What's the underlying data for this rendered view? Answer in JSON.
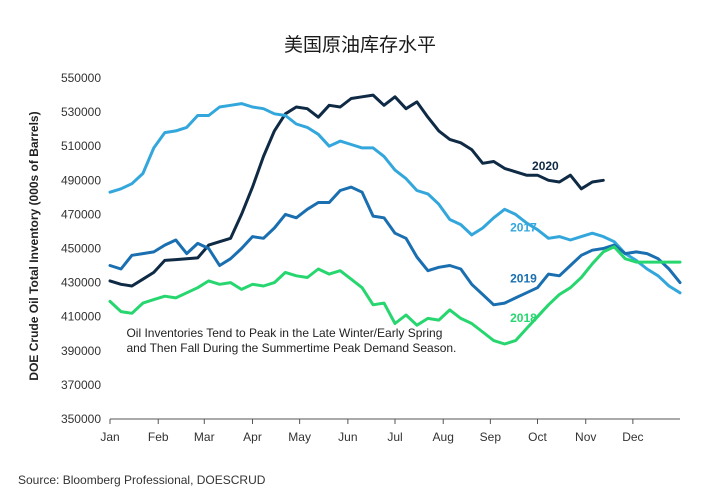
{
  "chart_data": {
    "type": "line",
    "title": "美国原油库存水平",
    "ylabel": "DOE Crude Oil Total Inventory (000s of Barrels)",
    "xlabel": "",
    "ylim": [
      350000,
      550000
    ],
    "yticks": [
      350000,
      370000,
      390000,
      410000,
      430000,
      450000,
      470000,
      490000,
      510000,
      530000,
      550000
    ],
    "ytick_labels": [
      "350000",
      "370000",
      "390000",
      "410000",
      "430000",
      "450000",
      "470000",
      "490000",
      "510000",
      "530000",
      "550000"
    ],
    "x_unit": "week of year",
    "xlim": [
      1,
      53
    ],
    "xticks": [
      1,
      5.4,
      9.6,
      14,
      18.3,
      22.7,
      27,
      31.4,
      35.7,
      40,
      44.4,
      48.7
    ],
    "xtick_labels": [
      "Jan",
      "Feb",
      "Mar",
      "Apr",
      "May",
      "Jun",
      "Jul",
      "Aug",
      "Sep",
      "Oct",
      "Nov",
      "Dec"
    ],
    "grid": false,
    "legend": "inline labels",
    "annotation": [
      "Oil Inventories Tend to Peak in the Late Winter/Early Spring",
      "and Then Fall During the Summertime Peak Demand Season."
    ],
    "source": "Source: Bloomberg Professional, DOESCRUD",
    "series": [
      {
        "name": "2020",
        "color": "#0f2a45",
        "x": [
          1,
          2,
          3,
          4,
          5,
          6,
          7,
          8,
          9,
          10,
          11,
          12,
          13,
          14,
          15,
          16,
          17,
          18,
          19,
          20,
          21,
          22,
          23,
          24,
          25,
          26,
          27,
          28,
          29,
          30,
          31,
          32,
          33,
          34,
          35,
          36,
          37,
          38,
          39,
          40,
          41,
          42,
          43,
          44,
          45,
          46
        ],
        "values": [
          431000,
          429000,
          428000,
          432000,
          436000,
          443000,
          443500,
          444000,
          444500,
          452000,
          454000,
          456000,
          470000,
          486000,
          504000,
          519000,
          529000,
          533000,
          532000,
          527000,
          534000,
          533000,
          538000,
          539000,
          540000,
          534000,
          539000,
          532000,
          536000,
          527000,
          519000,
          514000,
          512000,
          508000,
          500000,
          501000,
          497000,
          495000,
          493000,
          493000,
          490000,
          489000,
          493000,
          485000,
          489000,
          490000
        ]
      },
      {
        "name": "2017",
        "color": "#33a7dc",
        "x": [
          1,
          2,
          3,
          4,
          5,
          6,
          7,
          8,
          9,
          10,
          11,
          12,
          13,
          14,
          15,
          16,
          17,
          18,
          19,
          20,
          21,
          22,
          23,
          24,
          25,
          26,
          27,
          28,
          29,
          30,
          31,
          32,
          33,
          34,
          35,
          36,
          37,
          38,
          39,
          40,
          41,
          42,
          43,
          44,
          45,
          46,
          47,
          48,
          49,
          50,
          51,
          52,
          53
        ],
        "values": [
          483000,
          485000,
          488000,
          494000,
          509000,
          518000,
          519000,
          521000,
          528000,
          528000,
          533000,
          534000,
          535000,
          533000,
          532000,
          529000,
          528000,
          523000,
          521000,
          517000,
          510000,
          513000,
          511000,
          509000,
          509000,
          504000,
          496000,
          491000,
          484000,
          482000,
          476000,
          467000,
          464000,
          458000,
          462000,
          468000,
          473000,
          470000,
          465000,
          461000,
          456000,
          457000,
          455000,
          457000,
          459000,
          457000,
          454000,
          447000,
          443000,
          438000,
          434000,
          428000,
          424000
        ]
      },
      {
        "name": "2019",
        "color": "#1a6fb0",
        "x": [
          1,
          2,
          3,
          4,
          5,
          6,
          7,
          8,
          9,
          10,
          11,
          12,
          13,
          14,
          15,
          16,
          17,
          18,
          19,
          20,
          21,
          22,
          23,
          24,
          25,
          26,
          27,
          28,
          29,
          30,
          31,
          32,
          33,
          34,
          35,
          36,
          37,
          38,
          39,
          40,
          41,
          42,
          43,
          44,
          45,
          46,
          47,
          48,
          49,
          50,
          51,
          52,
          53
        ],
        "values": [
          440000,
          438000,
          446000,
          447000,
          448000,
          452000,
          455000,
          447000,
          453000,
          450000,
          440000,
          444000,
          450000,
          457000,
          456000,
          462000,
          470000,
          468000,
          473000,
          477000,
          477000,
          484000,
          486000,
          483000,
          469000,
          468000,
          459000,
          456000,
          445000,
          437000,
          439000,
          440000,
          438000,
          429000,
          423000,
          417000,
          418000,
          421000,
          424000,
          427000,
          435000,
          434000,
          440000,
          446000,
          449000,
          450000,
          452000,
          447000,
          448000,
          447000,
          444000,
          438000,
          430000
        ]
      },
      {
        "name": "2018",
        "color": "#27d66f",
        "x": [
          1,
          2,
          3,
          4,
          5,
          6,
          7,
          8,
          9,
          10,
          11,
          12,
          13,
          14,
          15,
          16,
          17,
          18,
          19,
          20,
          21,
          22,
          23,
          24,
          25,
          26,
          27,
          28,
          29,
          30,
          31,
          32,
          33,
          34,
          35,
          36,
          37,
          38,
          39,
          40,
          41,
          42,
          43,
          44,
          45,
          46,
          47,
          48,
          49,
          50,
          51,
          52,
          53
        ],
        "values": [
          419000,
          413000,
          412000,
          418000,
          420000,
          422000,
          421000,
          424000,
          427000,
          431000,
          429000,
          430000,
          426000,
          429000,
          428000,
          430000,
          436000,
          434000,
          433000,
          438000,
          435000,
          437000,
          432000,
          427000,
          417000,
          418000,
          406000,
          411000,
          405000,
          409000,
          408000,
          414000,
          409000,
          406000,
          401000,
          396000,
          394000,
          396000,
          403000,
          410000,
          417000,
          423000,
          427000,
          433000,
          441000,
          448000,
          451000,
          444000,
          442000,
          442000,
          442000,
          442000,
          442000
        ]
      }
    ],
    "series_label_points": [
      {
        "series": "2020",
        "x": 39.5,
        "y": 496000
      },
      {
        "series": "2017",
        "x": 37.5,
        "y": 460000
      },
      {
        "series": "2019",
        "x": 37.5,
        "y": 430000
      },
      {
        "series": "2018",
        "x": 37.5,
        "y": 407000
      }
    ],
    "annotation_anchor": {
      "x": 2.5,
      "y": 398000
    }
  }
}
